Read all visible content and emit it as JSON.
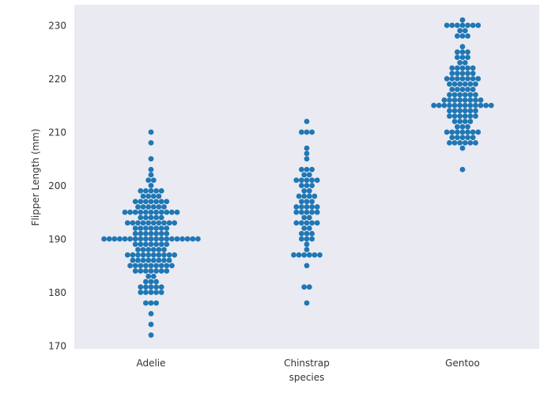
{
  "chart_data": {
    "type": "swarm",
    "title": "",
    "xlabel": "species",
    "ylabel": "Flipper Length (mm)",
    "categories": [
      "Adelie",
      "Chinstrap",
      "Gentoo"
    ],
    "ylim": [
      169,
      232
    ],
    "yticks": [
      170,
      180,
      190,
      200,
      210,
      220,
      230
    ],
    "grid": false,
    "background": "#eaeaf2",
    "point_color": "#1f77b4",
    "series": [
      {
        "name": "Adelie",
        "counts_by_value": {
          "172": 1,
          "174": 1,
          "176": 1,
          "178": 3,
          "180": 5,
          "181": 5,
          "182": 3,
          "183": 2,
          "184": 7,
          "185": 9,
          "186": 8,
          "187": 10,
          "188": 6,
          "189": 7,
          "190": 19,
          "191": 7,
          "192": 7,
          "193": 10,
          "194": 5,
          "195": 11,
          "196": 6,
          "197": 7,
          "198": 4,
          "199": 5,
          "200": 1,
          "201": 2,
          "202": 1,
          "203": 1,
          "205": 1,
          "208": 1,
          "210": 1
        }
      },
      {
        "name": "Chinstrap",
        "counts_by_value": {
          "178": 1,
          "181": 2,
          "185": 1,
          "187": 6,
          "188": 1,
          "189": 1,
          "190": 3,
          "191": 3,
          "192": 2,
          "193": 5,
          "194": 2,
          "195": 5,
          "196": 5,
          "197": 3,
          "198": 4,
          "199": 2,
          "200": 3,
          "201": 5,
          "202": 2,
          "203": 3,
          "205": 1,
          "206": 1,
          "207": 1,
          "210": 3,
          "212": 1
        }
      },
      {
        "name": "Gentoo",
        "counts_by_value": {
          "203": 1,
          "207": 1,
          "208": 6,
          "209": 5,
          "210": 7,
          "211": 3,
          "212": 4,
          "213": 6,
          "214": 6,
          "215": 12,
          "216": 8,
          "217": 6,
          "218": 5,
          "219": 6,
          "220": 7,
          "221": 5,
          "222": 5,
          "223": 2,
          "224": 3,
          "225": 3,
          "226": 1,
          "228": 3,
          "229": 2,
          "230": 7,
          "231": 1
        }
      }
    ]
  }
}
